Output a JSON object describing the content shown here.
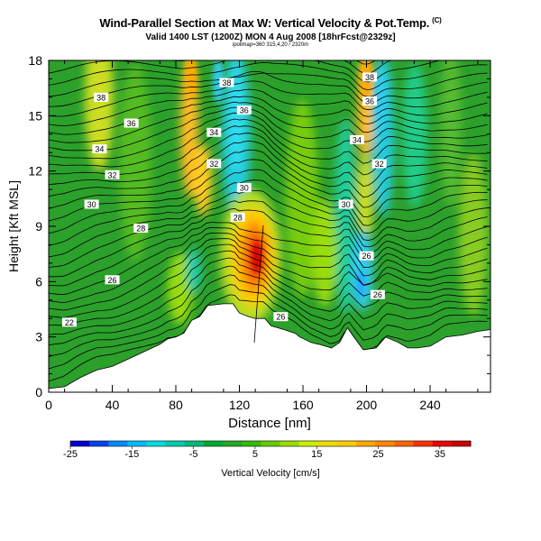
{
  "chart_data": {
    "type": "heatmap",
    "title": "Wind-Parallel Section at Max W: Vertical Velocity & Pot.Temp.",
    "copyright": "(C)",
    "subtitle": "Valid 1400 LST (1200Z) MON 4 Aug 2008 [18hrFcst@2329z]",
    "subtitle2": "ipollmap=360 315,4,20 / 2320m",
    "xlabel": "Distance [nm]",
    "ylabel": "Height [Kft MSL]",
    "xlim": [
      0,
      278
    ],
    "ylim": [
      0,
      18
    ],
    "x_ticks": [
      0,
      40,
      80,
      120,
      160,
      200,
      240
    ],
    "x_tick_labels": [
      "0",
      "40",
      "80",
      "120",
      "160",
      "200",
      "240"
    ],
    "y_ticks": [
      0,
      3,
      6,
      9,
      12,
      15,
      18
    ],
    "y_tick_labels": [
      "0",
      "3",
      "6",
      "9",
      "12",
      "15",
      "18"
    ],
    "colorbar": {
      "label": "Vertical Velocity [cm/s]",
      "range": [
        -25,
        40
      ],
      "tick_values": [
        -25,
        -15,
        -5,
        5,
        15,
        25,
        35
      ],
      "tick_labels": [
        "-25",
        "-15",
        "-5",
        "5",
        "15",
        "25",
        "35"
      ],
      "colors": [
        "#0000cc",
        "#0044ee",
        "#0088ff",
        "#00bbff",
        "#00dddd",
        "#00ccaa",
        "#00bb77",
        "#00aa33",
        "#22aa22",
        "#33bb00",
        "#66cc00",
        "#99dd00",
        "#ccee00",
        "#eedd00",
        "#ffcc00",
        "#ffaa00",
        "#ff8800",
        "#ff6600",
        "#ff3300",
        "#ee0000",
        "#cc0000"
      ]
    },
    "terrain_kft": [
      [
        0,
        0.2
      ],
      [
        10,
        0.3
      ],
      [
        20,
        0.8
      ],
      [
        30,
        1.2
      ],
      [
        40,
        1.4
      ],
      [
        50,
        1.8
      ],
      [
        60,
        2.2
      ],
      [
        70,
        2.6
      ],
      [
        75,
        2.9
      ],
      [
        80,
        3.0
      ],
      [
        85,
        3.2
      ],
      [
        90,
        3.9
      ],
      [
        95,
        4.1
      ],
      [
        100,
        4.7
      ],
      [
        110,
        4.8
      ],
      [
        116,
        4.8
      ],
      [
        120,
        4.3
      ],
      [
        126,
        4.1
      ],
      [
        130,
        4.0
      ],
      [
        136,
        4.0
      ],
      [
        140,
        3.6
      ],
      [
        148,
        3.4
      ],
      [
        155,
        3.2
      ],
      [
        158,
        3.0
      ],
      [
        165,
        2.7
      ],
      [
        170,
        2.6
      ],
      [
        178,
        2.4
      ],
      [
        183,
        2.7
      ],
      [
        188,
        3.5
      ],
      [
        192,
        3.0
      ],
      [
        198,
        2.3
      ],
      [
        206,
        2.4
      ],
      [
        212,
        3.0
      ],
      [
        220,
        2.7
      ],
      [
        226,
        2.4
      ],
      [
        232,
        2.4
      ],
      [
        240,
        2.5
      ],
      [
        250,
        3.0
      ],
      [
        260,
        3.1
      ],
      [
        270,
        3.3
      ],
      [
        278,
        3.4
      ]
    ],
    "theta_contours": [
      {
        "label": "22",
        "label_x": 13,
        "label_y": 3.8
      },
      {
        "label": "26",
        "label_x": 40,
        "label_y": 6.1
      },
      {
        "label": "28",
        "label_x": 58,
        "label_y": 8.9
      },
      {
        "label": "30",
        "label_x": 27,
        "label_y": 10.2
      },
      {
        "label": "32",
        "label_x": 40,
        "label_y": 11.8
      },
      {
        "label": "34",
        "label_x": 32,
        "label_y": 13.2
      },
      {
        "label": "36",
        "label_x": 52,
        "label_y": 14.6
      },
      {
        "label": "38",
        "label_x": 33,
        "label_y": 16.0
      },
      {
        "label": "38",
        "label_x": 112,
        "label_y": 16.8
      },
      {
        "label": "36",
        "label_x": 123,
        "label_y": 15.3
      },
      {
        "label": "34",
        "label_x": 104,
        "label_y": 14.1
      },
      {
        "label": "32",
        "label_x": 104,
        "label_y": 12.4
      },
      {
        "label": "30",
        "label_x": 123,
        "label_y": 11.1
      },
      {
        "label": "28",
        "label_x": 119,
        "label_y": 9.5
      },
      {
        "label": "26",
        "label_x": 146,
        "label_y": 4.1
      },
      {
        "label": "38",
        "label_x": 202,
        "label_y": 17.1
      },
      {
        "label": "36",
        "label_x": 202,
        "label_y": 15.8
      },
      {
        "label": "34",
        "label_x": 194,
        "label_y": 13.7
      },
      {
        "label": "32",
        "label_x": 208,
        "label_y": 12.4
      },
      {
        "label": "30",
        "label_x": 187,
        "label_y": 10.2
      },
      {
        "label": "26",
        "label_x": 200,
        "label_y": 7.4
      },
      {
        "label": "26",
        "label_x": 207,
        "label_y": 5.3
      }
    ]
  }
}
